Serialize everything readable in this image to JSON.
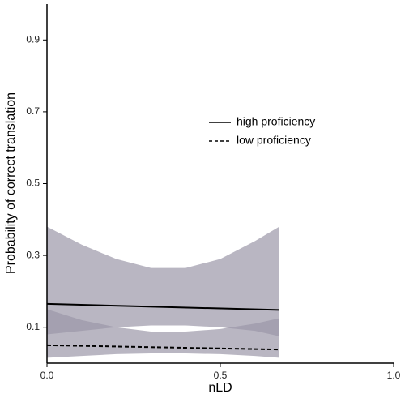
{
  "chart_data": {
    "type": "line",
    "x_label": "nLD",
    "y_label": "Probability of correct translation",
    "xlim": [
      0,
      1
    ],
    "ylim": [
      0,
      1
    ],
    "xticks": [
      {
        "value": 0,
        "label": "0.0"
      },
      0.5,
      {
        "value": 1,
        "label": "1.0"
      }
    ],
    "yticks": [
      0.1,
      0.3,
      0.5,
      0.7,
      0.9
    ],
    "grid": false,
    "series": [
      {
        "name": "high proficiency",
        "color": "#000000",
        "linestyle": "solid",
        "x": [
          0,
          0.67
        ],
        "values": [
          0.165,
          0.148
        ],
        "band": {
          "color": "#9b97a8",
          "opacity": 0.7,
          "x": [
            0,
            0.1,
            0.2,
            0.3,
            0.4,
            0.5,
            0.6,
            0.67
          ],
          "lower": [
            0.08,
            0.09,
            0.1,
            0.105,
            0.105,
            0.1,
            0.09,
            0.075
          ],
          "upper": [
            0.38,
            0.33,
            0.29,
            0.265,
            0.265,
            0.29,
            0.34,
            0.38
          ]
        }
      },
      {
        "name": "low proficiency",
        "color": "#000000",
        "linestyle": "dashed",
        "x": [
          0,
          0.67
        ],
        "values": [
          0.05,
          0.038
        ],
        "band": {
          "color": "#9b97a8",
          "opacity": 0.7,
          "x": [
            0,
            0.1,
            0.2,
            0.3,
            0.4,
            0.5,
            0.6,
            0.67
          ],
          "lower": [
            0.015,
            0.02,
            0.025,
            0.027,
            0.027,
            0.025,
            0.02,
            0.015
          ],
          "upper": [
            0.15,
            0.12,
            0.1,
            0.088,
            0.088,
            0.095,
            0.11,
            0.125
          ]
        }
      }
    ]
  }
}
